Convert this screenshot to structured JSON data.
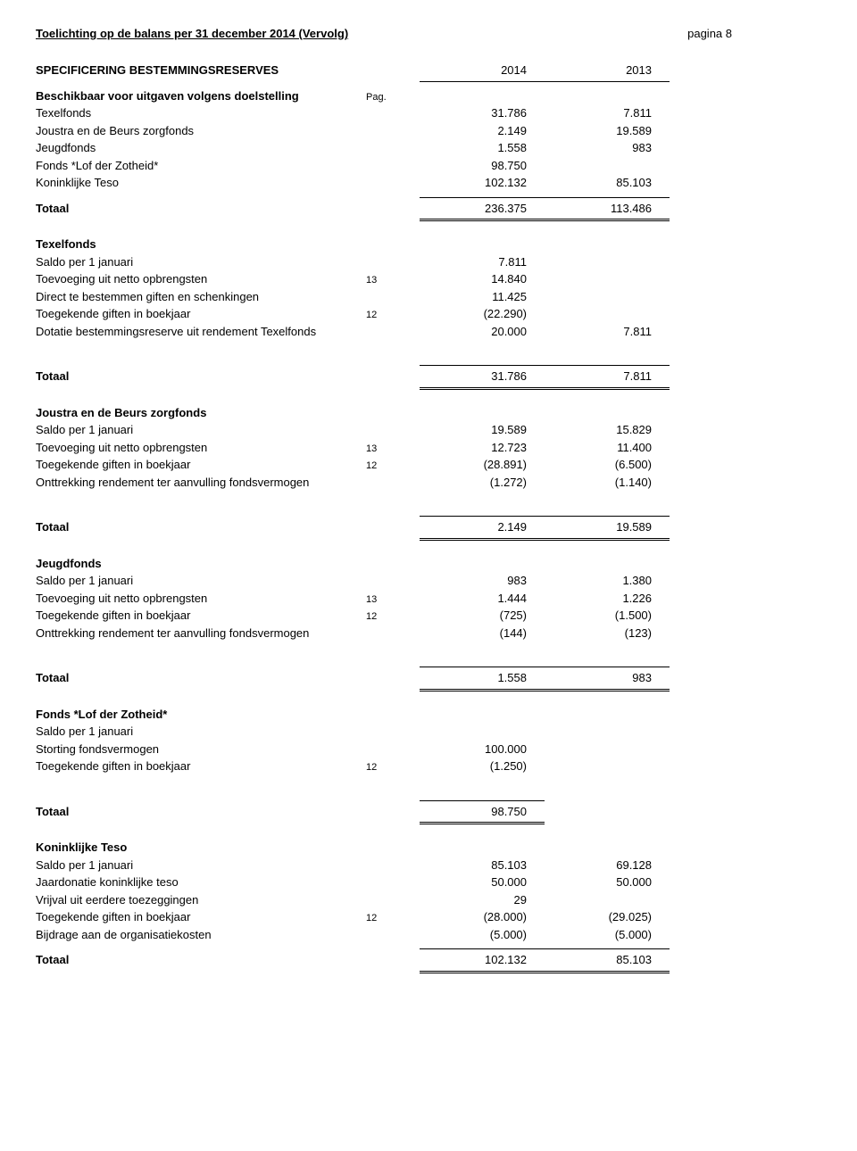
{
  "header": {
    "title": "Toelichting op de balans per 31 december 2014 (Vervolg)",
    "page": "pagina 8"
  },
  "spec_heading": "SPECIFICERING BESTEMMINGSRESERVES",
  "year1": "2014",
  "year2": "2013",
  "beschikbaar": "Beschikbaar voor uitgaven volgens doelstelling",
  "pag": "Pag.",
  "funds": {
    "texelfonds": {
      "label": "Texelfonds",
      "v1": "31.786",
      "v2": "7.811"
    },
    "joustra": {
      "label": "Joustra en de Beurs zorgfonds",
      "v1": "2.149",
      "v2": "19.589"
    },
    "jeugd": {
      "label": "Jeugdfonds",
      "v1": "1.558",
      "v2": "983"
    },
    "lof": {
      "label": "Fonds *Lof der Zotheid*",
      "v1": "98.750",
      "v2": ""
    },
    "teso": {
      "label": "Koninklijke Teso",
      "v1": "102.132",
      "v2": "85.103"
    }
  },
  "totaal_label": "Totaal",
  "grand_total": {
    "v1": "236.375",
    "v2": "113.486"
  },
  "texelfonds_section": {
    "heading": "Texelfonds",
    "rows": [
      {
        "label": "Saldo per 1 januari",
        "note": "",
        "v1": "7.811",
        "v2": ""
      },
      {
        "label": "Toevoeging uit netto opbrengsten",
        "note": "13",
        "v1": "14.840",
        "v2": ""
      },
      {
        "label": "Direct te bestemmen giften en schenkingen",
        "note": "",
        "v1": "11.425",
        "v2": ""
      },
      {
        "label": "Toegekende giften in boekjaar",
        "note": "12",
        "v1": "(22.290)",
        "v2": ""
      },
      {
        "label": "Dotatie bestemmingsreserve uit rendement Texelfonds",
        "note": "",
        "v1": "20.000",
        "v2": "7.811"
      }
    ],
    "total": {
      "v1": "31.786",
      "v2": "7.811"
    }
  },
  "joustra_section": {
    "heading": "Joustra en de Beurs zorgfonds",
    "rows": [
      {
        "label": "Saldo per 1 januari",
        "note": "",
        "v1": "19.589",
        "v2": "15.829"
      },
      {
        "label": "Toevoeging uit netto opbrengsten",
        "note": "13",
        "v1": "12.723",
        "v2": "11.400"
      },
      {
        "label": "Toegekende giften in boekjaar",
        "note": "12",
        "v1": "(28.891)",
        "v2": "(6.500)"
      },
      {
        "label": "Onttrekking rendement ter aanvulling fondsvermogen",
        "note": "",
        "v1": "(1.272)",
        "v2": "(1.140)"
      }
    ],
    "total": {
      "v1": "2.149",
      "v2": "19.589"
    }
  },
  "jeugd_section": {
    "heading": "Jeugdfonds",
    "rows": [
      {
        "label": "Saldo per 1 januari",
        "note": "",
        "v1": "983",
        "v2": "1.380"
      },
      {
        "label": "Toevoeging uit netto opbrengsten",
        "note": "13",
        "v1": "1.444",
        "v2": "1.226"
      },
      {
        "label": "Toegekende giften in boekjaar",
        "note": "12",
        "v1": "(725)",
        "v2": "(1.500)"
      },
      {
        "label": "Onttrekking rendement ter aanvulling fondsvermogen",
        "note": "",
        "v1": "(144)",
        "v2": "(123)"
      }
    ],
    "total": {
      "v1": "1.558",
      "v2": "983"
    }
  },
  "lof_section": {
    "heading": "Fonds *Lof der Zotheid*",
    "rows": [
      {
        "label": "Saldo per 1 januari",
        "note": "",
        "v1": "",
        "v2": ""
      },
      {
        "label": "Storting fondsvermogen",
        "note": "",
        "v1": "100.000",
        "v2": ""
      },
      {
        "label": "Toegekende giften in boekjaar",
        "note": "12",
        "v1": "(1.250)",
        "v2": ""
      }
    ],
    "total": {
      "v1": "98.750",
      "v2": ""
    }
  },
  "teso_section": {
    "heading": "Koninklijke Teso",
    "rows": [
      {
        "label": "Saldo per 1 januari",
        "note": "",
        "v1": "85.103",
        "v2": "69.128"
      },
      {
        "label": "Jaardonatie koninklijke teso",
        "note": "",
        "v1": "50.000",
        "v2": "50.000"
      },
      {
        "label": "Vrijval uit eerdere toezeggingen",
        "note": "",
        "v1": "29",
        "v2": ""
      },
      {
        "label": "Toegekende giften in boekjaar",
        "note": "12",
        "v1": "(28.000)",
        "v2": "(29.025)"
      },
      {
        "label": "Bijdrage aan de organisatiekosten",
        "note": "",
        "v1": "(5.000)",
        "v2": "(5.000)"
      }
    ],
    "total": {
      "v1": "102.132",
      "v2": "85.103"
    }
  }
}
